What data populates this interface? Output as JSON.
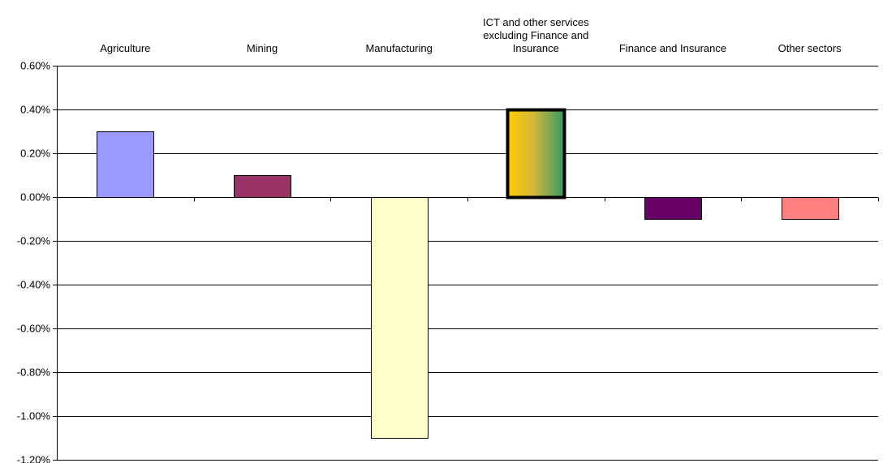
{
  "chart_data": {
    "type": "bar",
    "title": "",
    "xlabel": "",
    "ylabel": "",
    "categories": [
      "Agriculture",
      "Mining",
      "Manufacturing",
      "ICT and other services excluding Finance and Insurance",
      "Finance and Insurance",
      "Other sectors"
    ],
    "category_label_lines": [
      [
        "Agriculture"
      ],
      [
        "Mining"
      ],
      [
        "Manufacturing"
      ],
      [
        "ICT and other services",
        "excluding Finance and",
        "Insurance"
      ],
      [
        "Finance and Insurance"
      ],
      [
        "Other sectors"
      ]
    ],
    "values": [
      0.3,
      0.1,
      -1.1,
      0.4,
      -0.1,
      -0.1
    ],
    "ylim": [
      -1.2,
      0.6
    ],
    "yticks": [
      0.6,
      0.4,
      0.2,
      0.0,
      -0.2,
      -0.4,
      -0.6,
      -0.8,
      -1.0,
      -1.2
    ],
    "ytick_labels": [
      "0.60%",
      "0.40%",
      "0.20%",
      "0.00%",
      "-0.20%",
      "-0.40%",
      "-0.60%",
      "-0.80%",
      "-1.00%",
      "-1.20%"
    ],
    "bar_colors": [
      "#9999ff",
      "#993366",
      "#ffffcc",
      "gradient-gold-green",
      "#660066",
      "#ff8080"
    ],
    "grid": true,
    "category_labels_position": "top"
  }
}
